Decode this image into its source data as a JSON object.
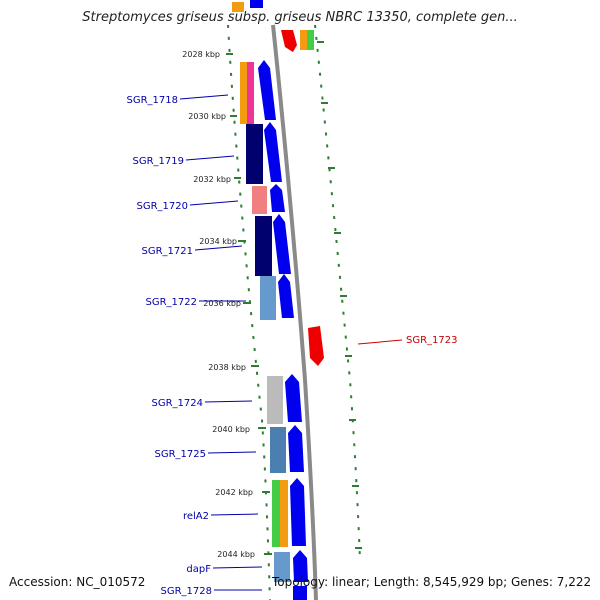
{
  "title": "Streptomyces griseus subsp. griseus NBRC 13350, complete gen...",
  "accession": "Accession: NC_010572",
  "topology": "Topology: linear; Length: 8,545,929 bp; Genes: 7,222",
  "colors": {
    "forward_cds": "#0000ee",
    "reverse_cds": "#ee0000",
    "label_blue": "#0000aa",
    "label_red": "#cc0000",
    "dots": "#2e7d32",
    "backbone": "#8a8a8a"
  },
  "tick_labels": [
    "2028 kbp",
    "2030 kbp",
    "2032 kbp",
    "2034 kbp",
    "2036 kbp",
    "2038 kbp",
    "2040 kbp",
    "2042 kbp",
    "2044 kbp"
  ],
  "genes": [
    {
      "name": "SGR_1718",
      "strand": "forward",
      "color_class": "blue"
    },
    {
      "name": "SGR_1719",
      "strand": "forward",
      "color_class": "blue"
    },
    {
      "name": "SGR_1720",
      "strand": "forward",
      "color_class": "blue"
    },
    {
      "name": "SGR_1721",
      "strand": "forward",
      "color_class": "blue"
    },
    {
      "name": "SGR_1722",
      "strand": "forward",
      "color_class": "blue"
    },
    {
      "name": "SGR_1723",
      "strand": "reverse",
      "color_class": "red"
    },
    {
      "name": "SGR_1724",
      "strand": "forward",
      "color_class": "blue"
    },
    {
      "name": "SGR_1725",
      "strand": "forward",
      "color_class": "blue"
    },
    {
      "name": "relA2",
      "strand": "forward",
      "color_class": "blue"
    },
    {
      "name": "dapF",
      "strand": "forward",
      "color_class": "blue"
    },
    {
      "name": "SGR_1728",
      "strand": "forward",
      "color_class": "blue"
    }
  ]
}
